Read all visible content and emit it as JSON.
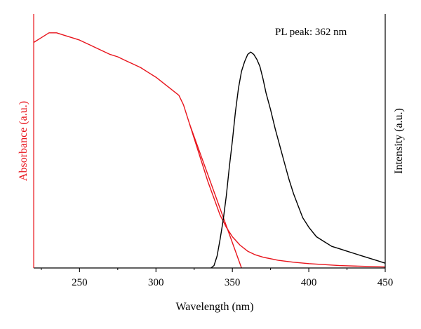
{
  "chart_data": {
    "type": "line",
    "xlabel": "Wavelength (nm)",
    "ylabel_left": "Absorbance (a.u.)",
    "ylabel_right": "Intensity (a.u.)",
    "annotation": "PL peak: 362 nm",
    "xlim": [
      220,
      450
    ],
    "ylim": [
      0,
      1
    ],
    "xticks": [
      250,
      300,
      350,
      400,
      450
    ],
    "xtick_labels": [
      "250",
      "300",
      "350",
      "400",
      "450"
    ],
    "grid": false,
    "colors": {
      "absorbance": "#e8141c",
      "pl": "#000000",
      "axis_left": "#e8141c",
      "axis": "#000000"
    },
    "series": [
      {
        "role": "absorbance",
        "color": "#e8141c",
        "x": [
          220,
          225,
          230,
          235,
          240,
          245,
          250,
          255,
          260,
          265,
          270,
          275,
          280,
          285,
          290,
          295,
          300,
          305,
          310,
          315,
          318,
          322,
          326,
          330,
          334,
          338,
          342,
          346,
          350,
          355,
          360,
          365,
          370,
          380,
          390,
          400,
          420,
          450
        ],
        "y": [
          0.94,
          0.96,
          0.98,
          0.98,
          0.97,
          0.96,
          0.95,
          0.935,
          0.92,
          0.905,
          0.89,
          0.88,
          0.865,
          0.85,
          0.835,
          0.815,
          0.795,
          0.77,
          0.745,
          0.72,
          0.68,
          0.6,
          0.52,
          0.44,
          0.36,
          0.29,
          0.22,
          0.17,
          0.13,
          0.095,
          0.07,
          0.055,
          0.045,
          0.032,
          0.024,
          0.018,
          0.01,
          0.004
        ]
      },
      {
        "role": "tangent",
        "color": "#e8141c",
        "x": [
          322,
          356
        ],
        "y": [
          0.6,
          0.0
        ]
      },
      {
        "role": "pl",
        "color": "#000000",
        "x": [
          336,
          338,
          340,
          342,
          344,
          346,
          348,
          350,
          352,
          354,
          356,
          358,
          360,
          362,
          364,
          366,
          368,
          370,
          372,
          375,
          378,
          381,
          384,
          387,
          390,
          393,
          396,
          400,
          405,
          410,
          415,
          420,
          425,
          430,
          435,
          440,
          445,
          450
        ],
        "y": [
          0.0,
          0.01,
          0.05,
          0.12,
          0.2,
          0.3,
          0.42,
          0.53,
          0.65,
          0.75,
          0.82,
          0.86,
          0.89,
          0.9,
          0.89,
          0.87,
          0.84,
          0.79,
          0.73,
          0.66,
          0.58,
          0.51,
          0.44,
          0.37,
          0.31,
          0.26,
          0.21,
          0.17,
          0.13,
          0.11,
          0.09,
          0.08,
          0.07,
          0.06,
          0.05,
          0.04,
          0.03,
          0.02
        ]
      }
    ]
  }
}
